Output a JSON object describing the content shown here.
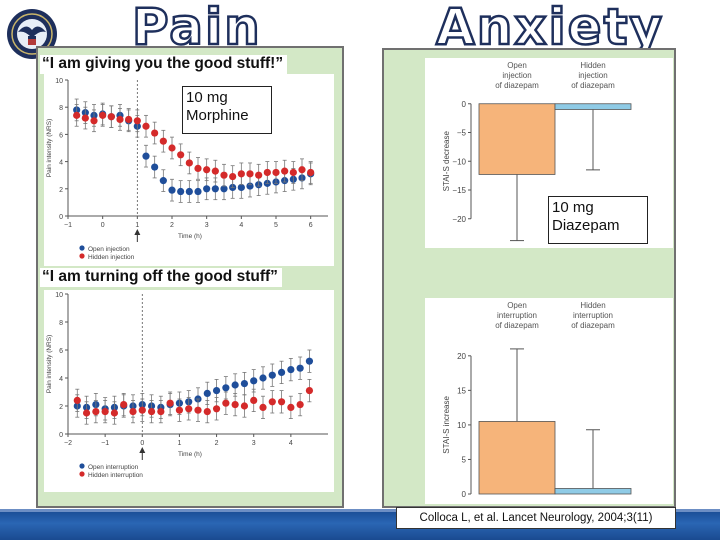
{
  "slide": {
    "title_left": "Pain",
    "title_right": "Anxiety",
    "quote_top": "“I am giving you the good stuff!”",
    "quote_bottom": "“I am turning off the good stuff”",
    "callout_morphine": "10 mg\nMorphine",
    "callout_diazepam": "10 mg\nDiazepam",
    "citation": "Colloca L, et al. Lancet Neurology, 2004;3(11)"
  },
  "colors": {
    "navy": "#1e2f5c",
    "panel_green": "#d3e8c6",
    "open_series": "#1f4e9a",
    "hidden_series": "#d42a2a",
    "open_bar": "#f6b47a",
    "hidden_bar": "#8fcbe6",
    "footer_blue": "#1b4f98"
  },
  "chart_data": [
    {
      "type": "scatter",
      "ylabel": "Pain intensity (NRS)",
      "xlabel": "Time (h)",
      "xlim": [
        -1,
        6.5
      ],
      "ylim": [
        0,
        10
      ],
      "xticks": [
        "−1",
        "0",
        "1",
        "2",
        "3",
        "4",
        "5",
        "6"
      ],
      "yticks": [
        "0",
        "2",
        "4",
        "6",
        "8",
        "10"
      ],
      "legend": [
        "Open injection",
        "Hidden injection"
      ],
      "legend_position": "bottom-left",
      "injection_marker_x": 1,
      "series": [
        {
          "name": "Open injection",
          "x": [
            -0.75,
            -0.5,
            -0.25,
            0,
            0.25,
            0.5,
            0.75,
            1,
            1.25,
            1.5,
            1.75,
            2,
            2.25,
            2.5,
            2.75,
            3,
            3.25,
            3.5,
            3.75,
            4,
            4.25,
            4.5,
            4.75,
            5,
            5.25,
            5.5,
            5.75,
            6
          ],
          "values": [
            7.8,
            7.6,
            7.4,
            7.5,
            7.3,
            7.4,
            7.0,
            6.6,
            4.4,
            3.6,
            2.6,
            1.9,
            1.8,
            1.8,
            1.8,
            2.0,
            2.0,
            2.0,
            2.1,
            2.1,
            2.2,
            2.3,
            2.4,
            2.5,
            2.6,
            2.7,
            2.8,
            3.1
          ]
        },
        {
          "name": "Hidden injection",
          "x": [
            -0.75,
            -0.5,
            -0.25,
            0,
            0.25,
            0.5,
            0.75,
            1,
            1.25,
            1.5,
            1.75,
            2,
            2.25,
            2.5,
            2.75,
            3,
            3.25,
            3.5,
            3.75,
            4,
            4.25,
            4.5,
            4.75,
            5,
            5.25,
            5.5,
            5.75,
            6
          ],
          "values": [
            7.4,
            7.2,
            7.0,
            7.4,
            7.3,
            7.1,
            7.1,
            7.0,
            6.6,
            6.1,
            5.5,
            5.0,
            4.5,
            3.9,
            3.5,
            3.4,
            3.3,
            3.0,
            2.9,
            3.1,
            3.1,
            3.0,
            3.2,
            3.2,
            3.3,
            3.2,
            3.4,
            3.2
          ]
        }
      ]
    },
    {
      "type": "scatter",
      "ylabel": "Pain intensity (NRS)",
      "xlabel": "Time (h)",
      "xlim": [
        -2,
        5
      ],
      "ylim": [
        0,
        10
      ],
      "xticks": [
        "−2",
        "−1",
        "0",
        "1",
        "2",
        "3",
        "4"
      ],
      "yticks": [
        "0",
        "2",
        "4",
        "6",
        "8",
        "10"
      ],
      "legend": [
        "Open interruption",
        "Hidden interruption"
      ],
      "legend_position": "bottom-left",
      "interruption_marker_x": 0,
      "series": [
        {
          "name": "Open interruption",
          "x": [
            -1.75,
            -1.5,
            -1.25,
            -1,
            -0.75,
            -0.5,
            -0.25,
            0,
            0.25,
            0.5,
            0.75,
            1,
            1.25,
            1.5,
            1.75,
            2,
            2.25,
            2.5,
            2.75,
            3,
            3.25,
            3.5,
            3.75,
            4,
            4.25,
            4.5
          ],
          "values": [
            2.0,
            1.9,
            2.1,
            1.8,
            1.9,
            2.0,
            2.0,
            2.1,
            2.0,
            1.9,
            2.1,
            2.2,
            2.3,
            2.5,
            2.9,
            3.1,
            3.3,
            3.5,
            3.6,
            3.8,
            4.0,
            4.2,
            4.4,
            4.6,
            4.7,
            5.2
          ]
        },
        {
          "name": "Hidden interruption",
          "x": [
            -1.75,
            -1.5,
            -1.25,
            -1,
            -0.75,
            -0.5,
            -0.25,
            0,
            0.25,
            0.5,
            0.75,
            1,
            1.25,
            1.5,
            1.75,
            2,
            2.25,
            2.5,
            2.75,
            3,
            3.25,
            3.5,
            3.75,
            4,
            4.25,
            4.5
          ],
          "values": [
            2.4,
            1.5,
            1.6,
            1.6,
            1.5,
            2.1,
            1.6,
            1.7,
            1.6,
            1.6,
            2.2,
            1.7,
            1.8,
            1.7,
            1.6,
            1.8,
            2.2,
            2.1,
            2.0,
            2.4,
            1.9,
            2.3,
            2.3,
            1.9,
            2.1,
            3.1
          ]
        }
      ]
    },
    {
      "type": "bar",
      "ylabel": "STAI-S decrease",
      "categories": [
        "Open injection of diazepam",
        "Hidden injection of diazepam"
      ],
      "values": [
        -12.3,
        -1.0
      ],
      "error_bars": [
        11.5,
        10.5
      ],
      "ylim": [
        -23,
        1
      ],
      "yticks": [
        0,
        -5,
        -10,
        -15,
        -20
      ]
    },
    {
      "type": "bar",
      "ylabel": "STAI-S increase",
      "categories": [
        "Open interruption of diazepam",
        "Hidden interruption of diazepam"
      ],
      "values": [
        10.5,
        0.8
      ],
      "error_bars": [
        10.5,
        8.5
      ],
      "ylim": [
        0,
        22
      ],
      "yticks": [
        0,
        5,
        10,
        15,
        20
      ]
    }
  ]
}
